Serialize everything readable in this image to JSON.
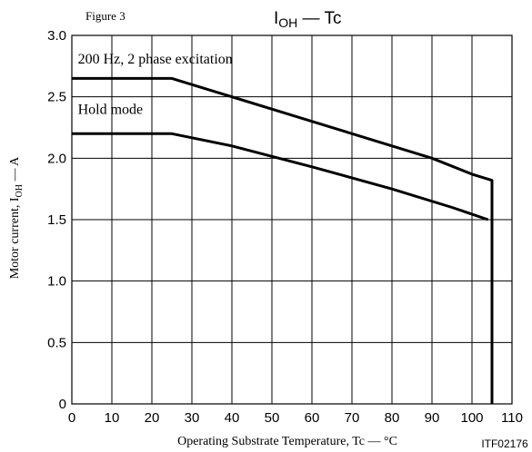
{
  "figure_label": "Figure 3",
  "title_main": "I",
  "title_sub": "OH",
  "title_rest": " — Tc",
  "figure_code": "ITF02176",
  "chart_data": {
    "type": "line",
    "xlabel": "Operating Substrate Temperature, Tc — °C",
    "ylabel_main": "Motor current, I",
    "ylabel_sub": "OH",
    "ylabel_rest": " — A",
    "xlim": [
      0,
      110
    ],
    "ylim": [
      0,
      3.0
    ],
    "x_ticks": [
      0,
      10,
      20,
      30,
      40,
      50,
      60,
      70,
      80,
      90,
      100,
      110
    ],
    "y_ticks": [
      0,
      0.5,
      1.0,
      1.5,
      2.0,
      2.5,
      3.0
    ],
    "x_tick_labels": [
      "0",
      "10",
      "20",
      "30",
      "40",
      "50",
      "60",
      "70",
      "80",
      "90",
      "100",
      "110"
    ],
    "y_tick_labels": [
      "0",
      "0.5",
      "1.0",
      "1.5",
      "2.0",
      "2.5",
      "3.0"
    ],
    "grid": true,
    "series": [
      {
        "name": "200 Hz, 2 phase excitation",
        "label_at": [
          1.5,
          2.77
        ],
        "points": [
          [
            0,
            2.65
          ],
          [
            25,
            2.65
          ],
          [
            90,
            2.0
          ],
          [
            100,
            1.87
          ],
          [
            105,
            1.82
          ],
          [
            105,
            0
          ]
        ]
      },
      {
        "name": "Hold mode",
        "label_at": [
          1.5,
          2.36
        ],
        "points": [
          [
            0,
            2.2
          ],
          [
            25,
            2.2
          ],
          [
            40,
            2.1
          ],
          [
            60,
            1.93
          ],
          [
            80,
            1.75
          ],
          [
            95,
            1.6
          ],
          [
            104,
            1.5
          ]
        ]
      }
    ]
  }
}
